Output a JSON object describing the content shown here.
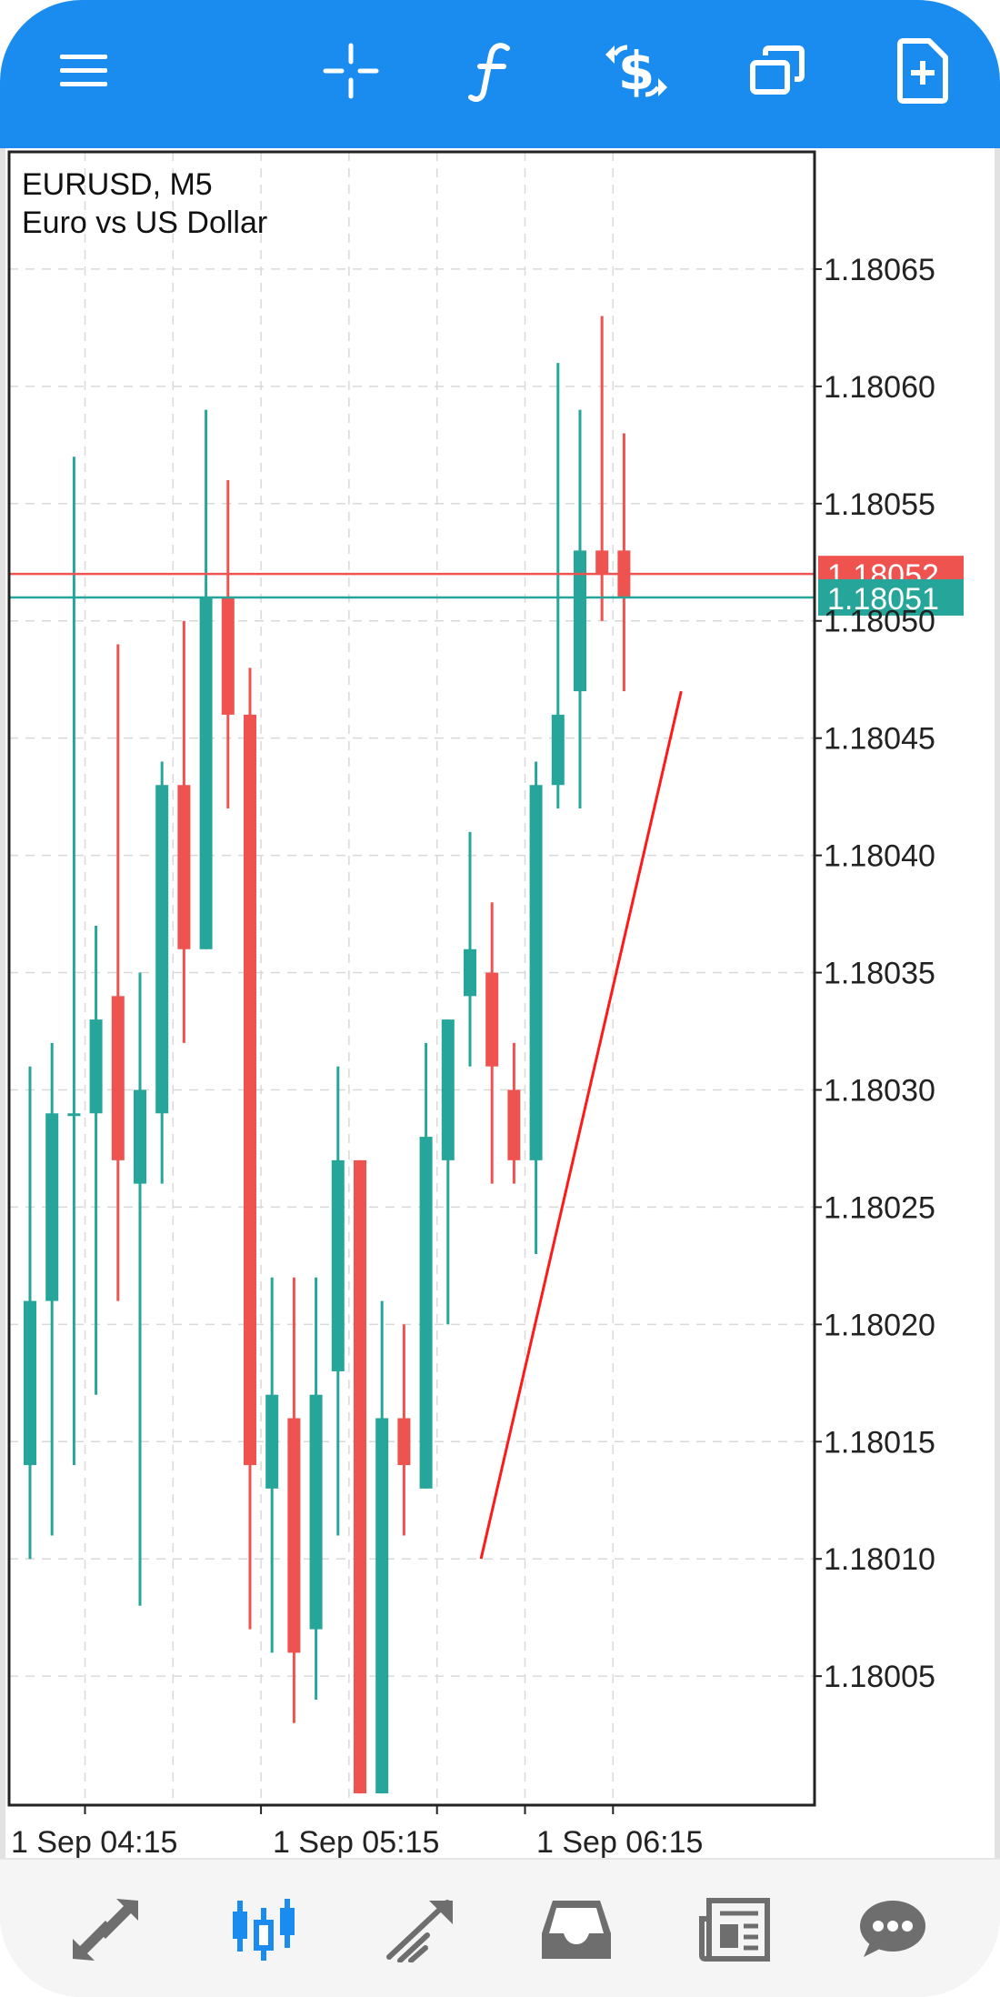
{
  "toolbar": {
    "icons": [
      "menu-icon",
      "crosshair-icon",
      "function-icon",
      "trade-dollar-icon",
      "windows-icon",
      "new-document-icon"
    ]
  },
  "chart_info": {
    "symbol_line": "EURUSD, M5",
    "description": "Euro vs US Dollar"
  },
  "bottom_nav": {
    "icons": [
      "quotes-arrows-icon",
      "chart-candles-icon",
      "trade-icon",
      "history-inbox-icon",
      "news-icon",
      "chat-icon"
    ],
    "active": 1
  },
  "colors": {
    "accent": "#1a8cf0",
    "bull": "#26a69a",
    "bear": "#ef5350",
    "ask_line": "#ef5350",
    "bid_line": "#26a69a",
    "trend_line": "#ff1a1a",
    "grid": "#d9d9d9"
  },
  "chart_data": {
    "type": "candlestick",
    "symbol": "EURUSD",
    "timeframe": "M5",
    "ylim": [
      1.179995,
      1.1807
    ],
    "y_ticks": [
      "1.18065",
      "1.18060",
      "1.18055",
      "1.18050",
      "1.18045",
      "1.18040",
      "1.18035",
      "1.18030",
      "1.18025",
      "1.18020",
      "1.18015",
      "1.18010",
      "1.18005"
    ],
    "x_tick_labels": [
      "1 Sep 04:15",
      "1 Sep 05:15",
      "1 Sep 06:15"
    ],
    "grid": true,
    "candles": [
      {
        "o": 1.18014,
        "h": 1.18031,
        "l": 1.1801,
        "c": 1.18021
      },
      {
        "o": 1.18021,
        "h": 1.18032,
        "l": 1.18011,
        "c": 1.18029
      },
      {
        "o": 1.18029,
        "h": 1.18057,
        "l": 1.18014,
        "c": 1.18029
      },
      {
        "o": 1.18029,
        "h": 1.18037,
        "l": 1.18017,
        "c": 1.18033
      },
      {
        "o": 1.18034,
        "h": 1.18049,
        "l": 1.18021,
        "c": 1.18027
      },
      {
        "o": 1.18026,
        "h": 1.18035,
        "l": 1.18008,
        "c": 1.1803
      },
      {
        "o": 1.18029,
        "h": 1.18044,
        "l": 1.18026,
        "c": 1.18043
      },
      {
        "o": 1.18043,
        "h": 1.1805,
        "l": 1.18032,
        "c": 1.18036
      },
      {
        "o": 1.18036,
        "h": 1.18059,
        "l": 1.18036,
        "c": 1.18051
      },
      {
        "o": 1.18051,
        "h": 1.18056,
        "l": 1.18042,
        "c": 1.18046
      },
      {
        "o": 1.18046,
        "h": 1.18048,
        "l": 1.18007,
        "c": 1.18014
      },
      {
        "o": 1.18013,
        "h": 1.18022,
        "l": 1.18006,
        "c": 1.18017
      },
      {
        "o": 1.18016,
        "h": 1.18022,
        "l": 1.18003,
        "c": 1.18006
      },
      {
        "o": 1.18007,
        "h": 1.18022,
        "l": 1.18004,
        "c": 1.18017
      },
      {
        "o": 1.18018,
        "h": 1.18031,
        "l": 1.18011,
        "c": 1.18027
      },
      {
        "o": 1.18027,
        "h": 1.18027,
        "l": 1.18,
        "c": 1.18
      },
      {
        "o": 1.18,
        "h": 1.18021,
        "l": 1.18,
        "c": 1.18016
      },
      {
        "o": 1.18016,
        "h": 1.1802,
        "l": 1.18011,
        "c": 1.18014
      },
      {
        "o": 1.18013,
        "h": 1.18032,
        "l": 1.18013,
        "c": 1.18028
      },
      {
        "o": 1.18027,
        "h": 1.18033,
        "l": 1.1802,
        "c": 1.18033
      },
      {
        "o": 1.18034,
        "h": 1.18041,
        "l": 1.18031,
        "c": 1.18036
      },
      {
        "o": 1.18035,
        "h": 1.18038,
        "l": 1.18026,
        "c": 1.18031
      },
      {
        "o": 1.1803,
        "h": 1.18032,
        "l": 1.18026,
        "c": 1.18027
      },
      {
        "o": 1.18027,
        "h": 1.18044,
        "l": 1.18023,
        "c": 1.18043
      },
      {
        "o": 1.18043,
        "h": 1.18061,
        "l": 1.18042,
        "c": 1.18046
      },
      {
        "o": 1.18047,
        "h": 1.18059,
        "l": 1.18042,
        "c": 1.18053
      },
      {
        "o": 1.18053,
        "h": 1.18063,
        "l": 1.1805,
        "c": 1.18052
      },
      {
        "o": 1.18053,
        "h": 1.18058,
        "l": 1.18047,
        "c": 1.18051
      }
    ],
    "ask_price": "1.18052",
    "bid_price": "1.18051",
    "trend_line": {
      "from_candle": 20.5,
      "from_price": 1.1801,
      "to_candle": 29.6,
      "to_price": 1.18047
    }
  }
}
